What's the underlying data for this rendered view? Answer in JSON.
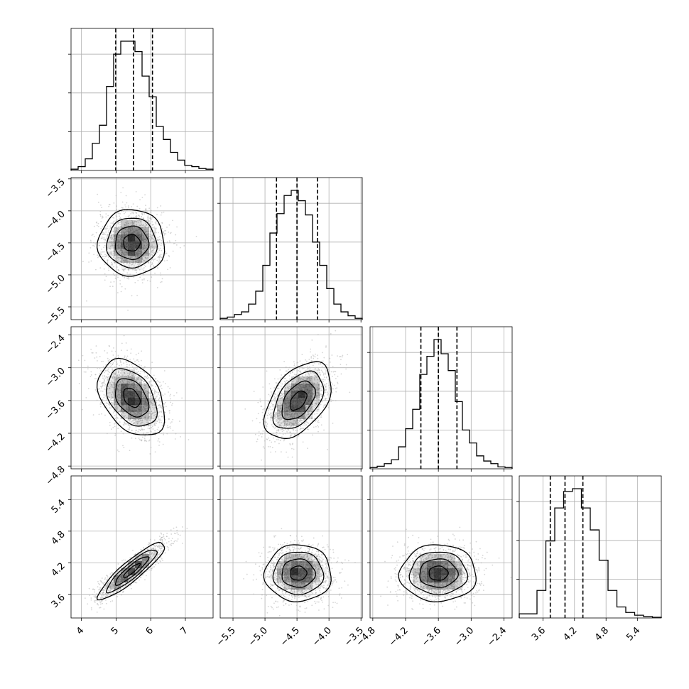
{
  "chart_data": {
    "type": "corner",
    "grid": true,
    "sample_color": "#b4b4b4",
    "density_color": "#000000",
    "line_color": "#000000",
    "variables": [
      {
        "range": [
          3.7,
          7.8
        ],
        "ticks": [
          4,
          5,
          6,
          7
        ],
        "tick_labels": [
          "4",
          "5",
          "6",
          "7"
        ],
        "quantiles": [
          4.99,
          5.5,
          6.05
        ],
        "histogram": [
          1,
          3,
          9,
          21,
          35,
          65,
          90,
          100,
          100,
          92,
          73,
          57,
          34,
          24,
          14,
          8,
          4,
          3,
          1.5,
          1
        ]
      },
      {
        "range": [
          -5.7,
          -3.48
        ],
        "ticks": [
          -5.5,
          -5.0,
          -4.5,
          -4.0,
          -3.5
        ],
        "tick_labels": [
          "−5.5",
          "−5.0",
          "−4.5",
          "−4.0",
          "−3.5"
        ],
        "quantiles": [
          -4.82,
          -4.5,
          -4.18
        ],
        "histogram": [
          1,
          2,
          4,
          6,
          12,
          22,
          42,
          67,
          82,
          96,
          100,
          92,
          81,
          60,
          42,
          24,
          12,
          6,
          3,
          1
        ]
      },
      {
        "range": [
          -4.85,
          -2.25
        ],
        "ticks": [
          -4.8,
          -4.2,
          -3.6,
          -3.0,
          -2.4
        ],
        "tick_labels": [
          "−4.8",
          "−4.2",
          "−3.6",
          "−3.0",
          "−2.4"
        ],
        "quantiles": [
          -3.92,
          -3.6,
          -3.26
        ],
        "histogram": [
          1,
          2,
          4,
          7,
          17,
          31,
          46,
          73,
          87,
          100,
          89,
          76,
          52,
          30,
          20,
          10,
          6,
          4,
          1.5,
          1
        ]
      },
      {
        "range": [
          3.15,
          5.85
        ],
        "ticks": [
          3.6,
          4.2,
          4.8,
          5.4
        ],
        "tick_labels": [
          "3.6",
          "4.2",
          "4.8",
          "5.4"
        ],
        "quantiles": [
          3.74,
          4.02,
          4.36
        ],
        "histogram": [
          3,
          3,
          20,
          56,
          80,
          92,
          94,
          80,
          64,
          42,
          20,
          8,
          4,
          2,
          1,
          0.5
        ]
      }
    ],
    "pairs": [
      {
        "row": 1,
        "col": 0,
        "center": [
          5.45,
          -4.5
        ],
        "sd": [
          0.48,
          0.26
        ],
        "rho": 0.0
      },
      {
        "row": 2,
        "col": 0,
        "center": [
          5.45,
          -3.55
        ],
        "sd": [
          0.48,
          0.35
        ],
        "rho": -0.38
      },
      {
        "row": 2,
        "col": 1,
        "center": [
          -4.48,
          -3.6
        ],
        "sd": [
          0.26,
          0.35
        ],
        "rho": 0.47
      },
      {
        "row": 3,
        "col": 0,
        "center": [
          5.45,
          4.05
        ],
        "sd": [
          0.48,
          0.27
        ],
        "rho": 0.9
      },
      {
        "row": 3,
        "col": 1,
        "center": [
          -4.48,
          4.0
        ],
        "sd": [
          0.26,
          0.27
        ],
        "rho": 0.0
      },
      {
        "row": 3,
        "col": 2,
        "center": [
          -3.6,
          4.0
        ],
        "sd": [
          0.35,
          0.27
        ],
        "rho": 0.0
      }
    ]
  }
}
